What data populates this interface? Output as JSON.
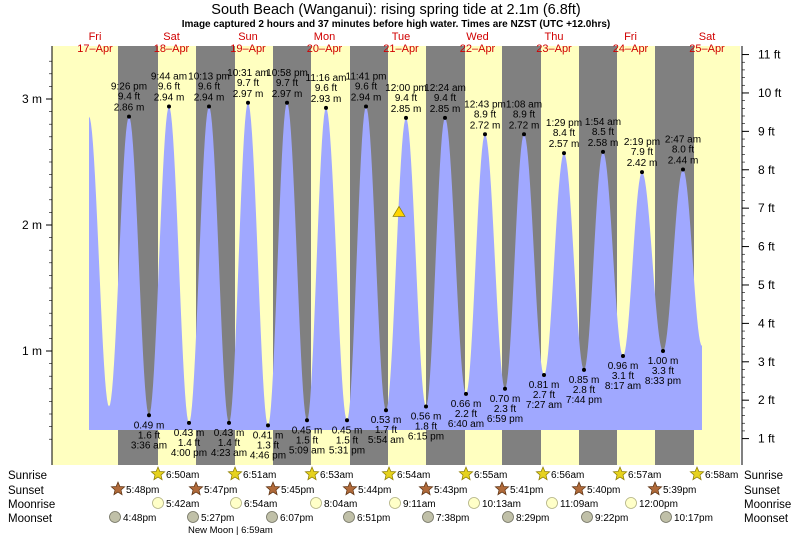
{
  "title": "South Beach (Wanganui): rising  spring tide at 2.1m (6.8ft)",
  "subtitle": "Image captured 2 hours and 37 minutes before high water. Times are NZST (UTC +12.0hrs)",
  "colors": {
    "day": "#ffffc0",
    "night": "#808080",
    "tide_fill": "#a0a8ff",
    "day_label": "#d00000",
    "marker": "#ffd400"
  },
  "days": [
    {
      "name": "Fri",
      "date": "17–Apr"
    },
    {
      "name": "Sat",
      "date": "18–Apr"
    },
    {
      "name": "Sun",
      "date": "19–Apr"
    },
    {
      "name": "Mon",
      "date": "20–Apr"
    },
    {
      "name": "Tue",
      "date": "21–Apr"
    },
    {
      "name": "Wed",
      "date": "22–Apr"
    },
    {
      "name": "Thu",
      "date": "23–Apr"
    },
    {
      "name": "Fri",
      "date": "24–Apr"
    },
    {
      "name": "Sat",
      "date": "25–Apr"
    }
  ],
  "chart_data": {
    "type": "area",
    "title": "South Beach (Wanganui): rising  spring tide at 2.1m (6.8ft)",
    "y_left_ticks": [
      "1 m",
      "2 m",
      "3 m"
    ],
    "y_right_ticks": [
      "1 ft",
      "2 ft",
      "3 ft",
      "4 ft",
      "5 ft",
      "6 ft",
      "7 ft",
      "8 ft",
      "9 ft",
      "10 ft",
      "11 ft"
    ],
    "ylim_m": [
      0.23,
      3.35
    ],
    "current_marker": {
      "height_m": 2.1
    },
    "high_tides": [
      {
        "time": "9:26 pm",
        "ft": "9.4 ft",
        "m": "2.86 m",
        "height_m": 2.86
      },
      {
        "time": "9:44 am",
        "ft": "9.6 ft",
        "m": "2.94 m",
        "height_m": 2.94
      },
      {
        "time": "10:13 pm",
        "ft": "9.6 ft",
        "m": "2.94 m",
        "height_m": 2.94
      },
      {
        "time": "10:31 am",
        "ft": "9.7 ft",
        "m": "2.97 m",
        "height_m": 2.97
      },
      {
        "time": "10:58 pm",
        "ft": "9.7 ft",
        "m": "2.97 m",
        "height_m": 2.97
      },
      {
        "time": "11:16 am",
        "ft": "9.6 ft",
        "m": "2.93 m",
        "height_m": 2.93
      },
      {
        "time": "11:41 pm",
        "ft": "9.6 ft",
        "m": "2.94 m",
        "height_m": 2.94
      },
      {
        "time": "12:00 pm",
        "ft": "9.4 ft",
        "m": "2.85 m",
        "height_m": 2.85
      },
      {
        "time": "12:24 am",
        "ft": "9.4 ft",
        "m": "2.85 m",
        "height_m": 2.85
      },
      {
        "time": "12:43 pm",
        "ft": "8.9 ft",
        "m": "2.72 m",
        "height_m": 2.72
      },
      {
        "time": "1:08 am",
        "ft": "8.9 ft",
        "m": "2.72 m",
        "height_m": 2.72
      },
      {
        "time": "1:29 pm",
        "ft": "8.4 ft",
        "m": "2.57 m",
        "height_m": 2.57
      },
      {
        "time": "1:54 am",
        "ft": "8.5 ft",
        "m": "2.58 m",
        "height_m": 2.58
      },
      {
        "time": "2:19 pm",
        "ft": "7.9 ft",
        "m": "2.42 m",
        "height_m": 2.42
      },
      {
        "time": "2:47 am",
        "ft": "8.0 ft",
        "m": "2.44 m",
        "height_m": 2.44
      }
    ],
    "low_tides": [
      {
        "m": "0.49 m",
        "ft": "1.6 ft",
        "time": "3:36 am",
        "height_m": 0.49
      },
      {
        "m": "0.43 m",
        "ft": "1.4 ft",
        "time": "4:00 pm",
        "height_m": 0.43
      },
      {
        "m": "0.43 m",
        "ft": "1.4 ft",
        "time": "4:23 am",
        "height_m": 0.43
      },
      {
        "m": "0.41 m",
        "ft": "1.3 ft",
        "time": "4:46 pm",
        "height_m": 0.41
      },
      {
        "m": "0.45 m",
        "ft": "1.5 ft",
        "time": "5:09 am",
        "height_m": 0.45
      },
      {
        "m": "0.45 m",
        "ft": "1.5 ft",
        "time": "5:31 pm",
        "height_m": 0.45
      },
      {
        "m": "0.53 m",
        "ft": "1.7 ft",
        "time": "5:54 am",
        "height_m": 0.53
      },
      {
        "m": "0.56 m",
        "ft": "1.8 ft",
        "time": "6:15 pm",
        "height_m": 0.56
      },
      {
        "m": "0.66 m",
        "ft": "2.2 ft",
        "time": "6:40 am",
        "height_m": 0.66
      },
      {
        "m": "0.70 m",
        "ft": "2.3 ft",
        "time": "6:59 pm",
        "height_m": 0.7
      },
      {
        "m": "0.81 m",
        "ft": "2.7 ft",
        "time": "7:27 am",
        "height_m": 0.81
      },
      {
        "m": "0.85 m",
        "ft": "2.8 ft",
        "time": "7:44 pm",
        "height_m": 0.85
      },
      {
        "m": "0.96 m",
        "ft": "3.1 ft",
        "time": "8:17 am",
        "height_m": 0.96
      },
      {
        "m": "1.00 m",
        "ft": "3.3 ft",
        "time": "8:33 pm",
        "height_m": 1.0
      }
    ]
  },
  "events": {
    "row_labels": [
      "Sunrise",
      "Sunset",
      "Moonrise",
      "Moonset"
    ],
    "sunrise": [
      "6:50am",
      "6:51am",
      "6:53am",
      "6:54am",
      "6:55am",
      "6:56am",
      "6:57am",
      "6:58am"
    ],
    "sunset": [
      "5:48pm",
      "5:47pm",
      "5:45pm",
      "5:44pm",
      "5:43pm",
      "5:41pm",
      "5:40pm",
      "5:39pm"
    ],
    "moonrise": [
      "5:42am",
      "6:54am",
      "8:04am",
      "9:11am",
      "10:13am",
      "11:09am",
      "12:00pm"
    ],
    "moonset": [
      "4:48pm",
      "5:27pm",
      "6:07pm",
      "6:51pm",
      "7:38pm",
      "8:29pm",
      "9:22pm",
      "10:17pm"
    ],
    "new_moon": "New Moon | 6:59am"
  }
}
